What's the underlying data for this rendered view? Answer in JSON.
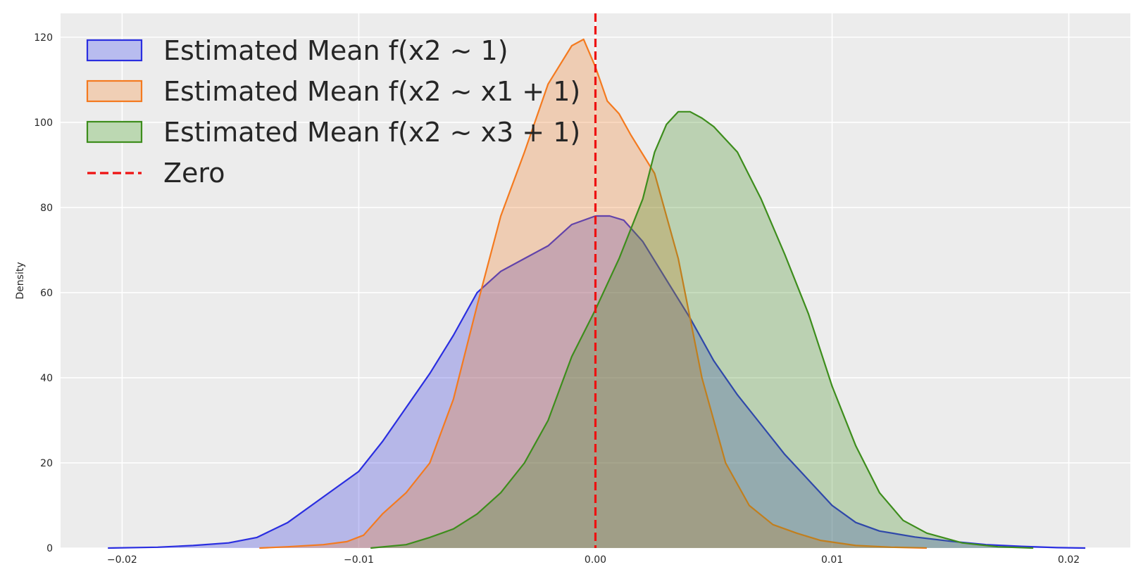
{
  "chart_data": {
    "type": "area",
    "title": "",
    "xlabel": "",
    "ylabel": "Density",
    "xlim": [
      -0.0226,
      0.0226
    ],
    "ylim": [
      0,
      125.6
    ],
    "xticks": [
      -0.02,
      -0.01,
      0.0,
      0.01,
      0.02
    ],
    "xtick_labels": [
      "−0.02",
      "−0.01",
      "0.00",
      "0.01",
      "0.02"
    ],
    "yticks": [
      0,
      20,
      40,
      60,
      80,
      100,
      120
    ],
    "ytick_labels": [
      "0",
      "20",
      "40",
      "60",
      "80",
      "100",
      "120"
    ],
    "grid": true,
    "legend_position": "upper-left",
    "series": [
      {
        "name": "Estimated Mean f(x2 ~ 1)",
        "color": "#2a2ee0",
        "fill": "#b8bcef",
        "x": [
          -0.0206,
          -0.0185,
          -0.017,
          -0.0155,
          -0.0143,
          -0.013,
          -0.0115,
          -0.01,
          -0.009,
          -0.008,
          -0.007,
          -0.006,
          -0.005,
          -0.004,
          -0.003,
          -0.002,
          -0.001,
          0.0,
          0.0006,
          0.0012,
          0.002,
          0.003,
          0.004,
          0.005,
          0.006,
          0.007,
          0.008,
          0.009,
          0.01,
          0.011,
          0.012,
          0.0135,
          0.015,
          0.0165,
          0.018,
          0.0195,
          0.0207
        ],
        "y": [
          0,
          0.2,
          0.6,
          1.2,
          2.5,
          6,
          12,
          18,
          25,
          33,
          41,
          50,
          60,
          65,
          68,
          71,
          76,
          78,
          78,
          77,
          72,
          63,
          54,
          44,
          36,
          29,
          22,
          16,
          10,
          6,
          4,
          2.6,
          1.6,
          0.8,
          0.4,
          0.1,
          0
        ]
      },
      {
        "name": "Estimated Mean f(x2 ~ x1 + 1)",
        "color": "#f47a1f",
        "fill": "#f0cfb5",
        "x": [
          -0.0142,
          -0.013,
          -0.0115,
          -0.0105,
          -0.0098,
          -0.009,
          -0.008,
          -0.007,
          -0.006,
          -0.005,
          -0.004,
          -0.003,
          -0.002,
          -0.001,
          -0.0005,
          0.0,
          0.0005,
          0.001,
          0.0015,
          0.0025,
          0.0035,
          0.0045,
          0.0055,
          0.0065,
          0.0075,
          0.0085,
          0.0095,
          0.011,
          0.0125,
          0.014
        ],
        "y": [
          0,
          0.3,
          0.8,
          1.5,
          3,
          8,
          13,
          20,
          35,
          57,
          78,
          93,
          109,
          118,
          119.5,
          113,
          105,
          102,
          97,
          88,
          68,
          40,
          20,
          10,
          5.5,
          3.5,
          1.8,
          0.6,
          0.2,
          0
        ]
      },
      {
        "name": "Estimated Mean f(x2 ~ x3 + 1)",
        "color": "#3d8d1c",
        "fill": "#bcd8b2",
        "x": [
          -0.0095,
          -0.008,
          -0.007,
          -0.006,
          -0.005,
          -0.004,
          -0.003,
          -0.002,
          -0.001,
          0.0,
          0.001,
          0.002,
          0.0025,
          0.003,
          0.0035,
          0.004,
          0.0045,
          0.005,
          0.006,
          0.007,
          0.008,
          0.009,
          0.01,
          0.011,
          0.012,
          0.013,
          0.014,
          0.0155,
          0.017,
          0.0185
        ],
        "y": [
          0,
          0.8,
          2.5,
          4.5,
          8,
          13,
          20,
          30,
          45,
          56,
          68,
          82,
          93,
          99.5,
          102.5,
          102.5,
          101,
          99,
          93,
          82,
          69,
          55,
          38,
          24,
          13,
          6.5,
          3.5,
          1.2,
          0.3,
          0
        ]
      }
    ],
    "reference_line": {
      "name": "Zero",
      "x": 0.0,
      "color": "#ee1111",
      "style": "dashed"
    }
  }
}
